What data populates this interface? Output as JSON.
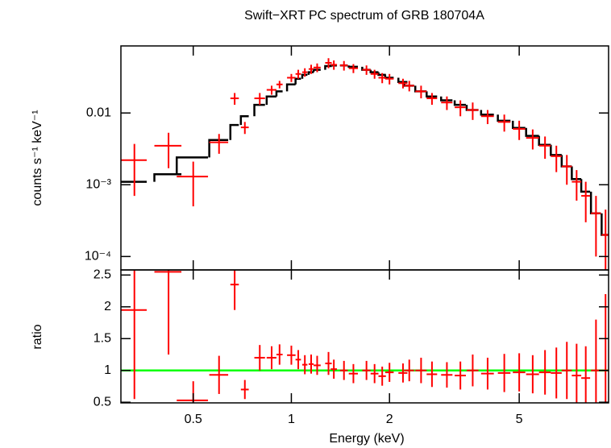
{
  "chart_data": [
    {
      "type": "errorbar",
      "title": "Swift−XRT PC spectrum of GRB 180704A",
      "ylabel": "counts s⁻¹ keV⁻¹",
      "ylog": true,
      "color": "#ff0000",
      "model_color": "#000000",
      "x": [
        0.33,
        0.42,
        0.5,
        0.6,
        0.67,
        0.72,
        0.8,
        0.87,
        0.92,
        1.0,
        1.05,
        1.1,
        1.15,
        1.2,
        1.3,
        1.35,
        1.45,
        1.55,
        1.7,
        1.8,
        1.9,
        2.0,
        2.2,
        2.3,
        2.5,
        2.7,
        3.0,
        3.3,
        3.6,
        4.0,
        4.5,
        5.0,
        5.5,
        6.0,
        6.5,
        7.0,
        7.5,
        8.0,
        8.6,
        9.2
      ],
      "x_err": [
        0.03,
        0.04,
        0.055,
        0.04,
        0.02,
        0.02,
        0.03,
        0.03,
        0.02,
        0.03,
        0.02,
        0.02,
        0.02,
        0.03,
        0.03,
        0.03,
        0.04,
        0.05,
        0.05,
        0.05,
        0.05,
        0.06,
        0.07,
        0.08,
        0.1,
        0.1,
        0.12,
        0.13,
        0.15,
        0.18,
        0.2,
        0.22,
        0.25,
        0.25,
        0.25,
        0.25,
        0.25,
        0.25,
        0.3,
        0.25
      ],
      "values": [
        0.0022,
        0.0035,
        0.0013,
        0.0039,
        0.016,
        0.0063,
        0.016,
        0.021,
        0.025,
        0.031,
        0.035,
        0.037,
        0.041,
        0.043,
        0.05,
        0.047,
        0.046,
        0.042,
        0.04,
        0.035,
        0.031,
        0.03,
        0.026,
        0.024,
        0.02,
        0.016,
        0.014,
        0.012,
        0.011,
        0.009,
        0.0075,
        0.006,
        0.0045,
        0.0035,
        0.0025,
        0.0018,
        0.0011,
        0.0007,
        0.0004,
        0.0002
      ],
      "errors": [
        0.0015,
        0.0018,
        0.0008,
        0.0012,
        0.003,
        0.0012,
        0.003,
        0.003,
        0.003,
        0.004,
        0.005,
        0.005,
        0.006,
        0.006,
        0.008,
        0.007,
        0.007,
        0.006,
        0.006,
        0.005,
        0.005,
        0.005,
        0.004,
        0.004,
        0.004,
        0.003,
        0.003,
        0.003,
        0.003,
        0.002,
        0.002,
        0.0018,
        0.0014,
        0.0012,
        0.001,
        0.0008,
        0.0005,
        0.0004,
        0.0003,
        0.00025
      ],
      "model": [
        0.0011,
        0.0014,
        0.0024,
        0.0042,
        0.0068,
        0.009,
        0.013,
        0.017,
        0.02,
        0.025,
        0.03,
        0.034,
        0.037,
        0.04,
        0.045,
        0.046,
        0.046,
        0.044,
        0.04,
        0.037,
        0.034,
        0.031,
        0.027,
        0.024,
        0.02,
        0.017,
        0.015,
        0.013,
        0.011,
        0.0095,
        0.0078,
        0.0062,
        0.0048,
        0.0036,
        0.0026,
        0.0018,
        0.0012,
        0.0008,
        0.0004,
        0.0002
      ],
      "ylim": [
        6.5e-05,
        0.086
      ],
      "yticks": [
        {
          "value": 0.0001,
          "label": "10⁻⁴"
        },
        {
          "value": 0.001,
          "label": "10⁻³"
        },
        0.01
      ]
    },
    {
      "type": "errorbar",
      "ylabel": "ratio",
      "xlabel": "Energy (keV)",
      "xlog": true,
      "color": "#ff0000",
      "values": [
        1.95,
        2.55,
        0.53,
        0.93,
        2.35,
        0.7,
        1.2,
        1.2,
        1.25,
        1.24,
        1.17,
        1.09,
        1.1,
        1.08,
        1.11,
        1.02,
        1.0,
        0.95,
        1.0,
        0.95,
        0.91,
        0.97,
        0.96,
        1.0,
        1.0,
        0.94,
        0.93,
        0.92,
        1.0,
        0.95,
        0.96,
        0.97,
        0.94,
        0.97,
        0.96,
        1.0,
        0.92,
        0.88,
        1.0,
        1.0
      ],
      "errors": [
        1.4,
        1.3,
        0.3,
        0.3,
        0.4,
        0.15,
        0.2,
        0.18,
        0.16,
        0.15,
        0.15,
        0.15,
        0.15,
        0.15,
        0.18,
        0.15,
        0.15,
        0.15,
        0.15,
        0.15,
        0.15,
        0.15,
        0.15,
        0.17,
        0.2,
        0.2,
        0.2,
        0.22,
        0.25,
        0.25,
        0.3,
        0.3,
        0.3,
        0.35,
        0.4,
        0.45,
        0.5,
        0.5,
        0.8,
        1.2
      ],
      "ref_line": 1,
      "ref_color": "#00ff00",
      "xlim": [
        0.3,
        9.4
      ],
      "xticks": [
        0.5,
        1,
        2,
        5
      ],
      "ylim": [
        0.49,
        2.58
      ],
      "yticks": [
        0.5,
        1,
        1.5,
        2,
        2.5
      ]
    }
  ]
}
